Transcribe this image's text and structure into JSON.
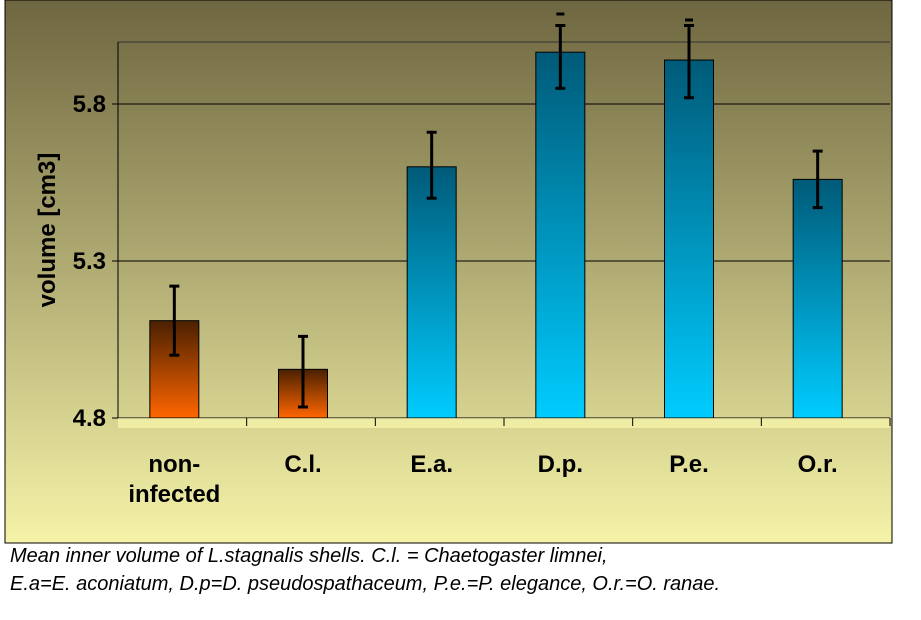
{
  "chart_data": {
    "type": "bar",
    "categories": [
      "non-\ninfected",
      "C.l.",
      "E.a.",
      "D.p.",
      "P.e.",
      "O.r."
    ],
    "values": [
      5.11,
      4.955,
      5.6,
      5.965,
      5.94,
      5.56
    ],
    "error_low": [
      5.0,
      4.835,
      5.5,
      5.85,
      5.82,
      5.47
    ],
    "error_high": [
      5.22,
      5.06,
      5.71,
      6.05,
      6.05,
      5.65
    ],
    "series_colors": [
      "#ff6600",
      "#ff6600",
      "#00ccff",
      "#00ccff",
      "#00ccff",
      "#00ccff"
    ],
    "ylabel": "volume [cm3]",
    "yticks": [
      "4.8",
      "5.3",
      "5.8"
    ],
    "ytick_values": [
      4.8,
      5.3,
      5.8
    ],
    "ylim": [
      4.8,
      6.0
    ],
    "grid": true,
    "colors": {
      "bg_top": "#6e6640",
      "bg_bottom": "#f5f3a8",
      "infected_top": "#4a2000",
      "infected_bottom": "#ff6600",
      "parasite_top": "#005a78",
      "parasite_bottom": "#00ccff"
    }
  },
  "caption": {
    "line1": "Mean inner volume of  L.stagnalis shells.  C.l. = Chaetogaster limnei,",
    "line2": "E.a=E. aconiatum, D.p=D. pseudospathaceum, P.e.=P. elegance, O.r.=O. ranae."
  }
}
